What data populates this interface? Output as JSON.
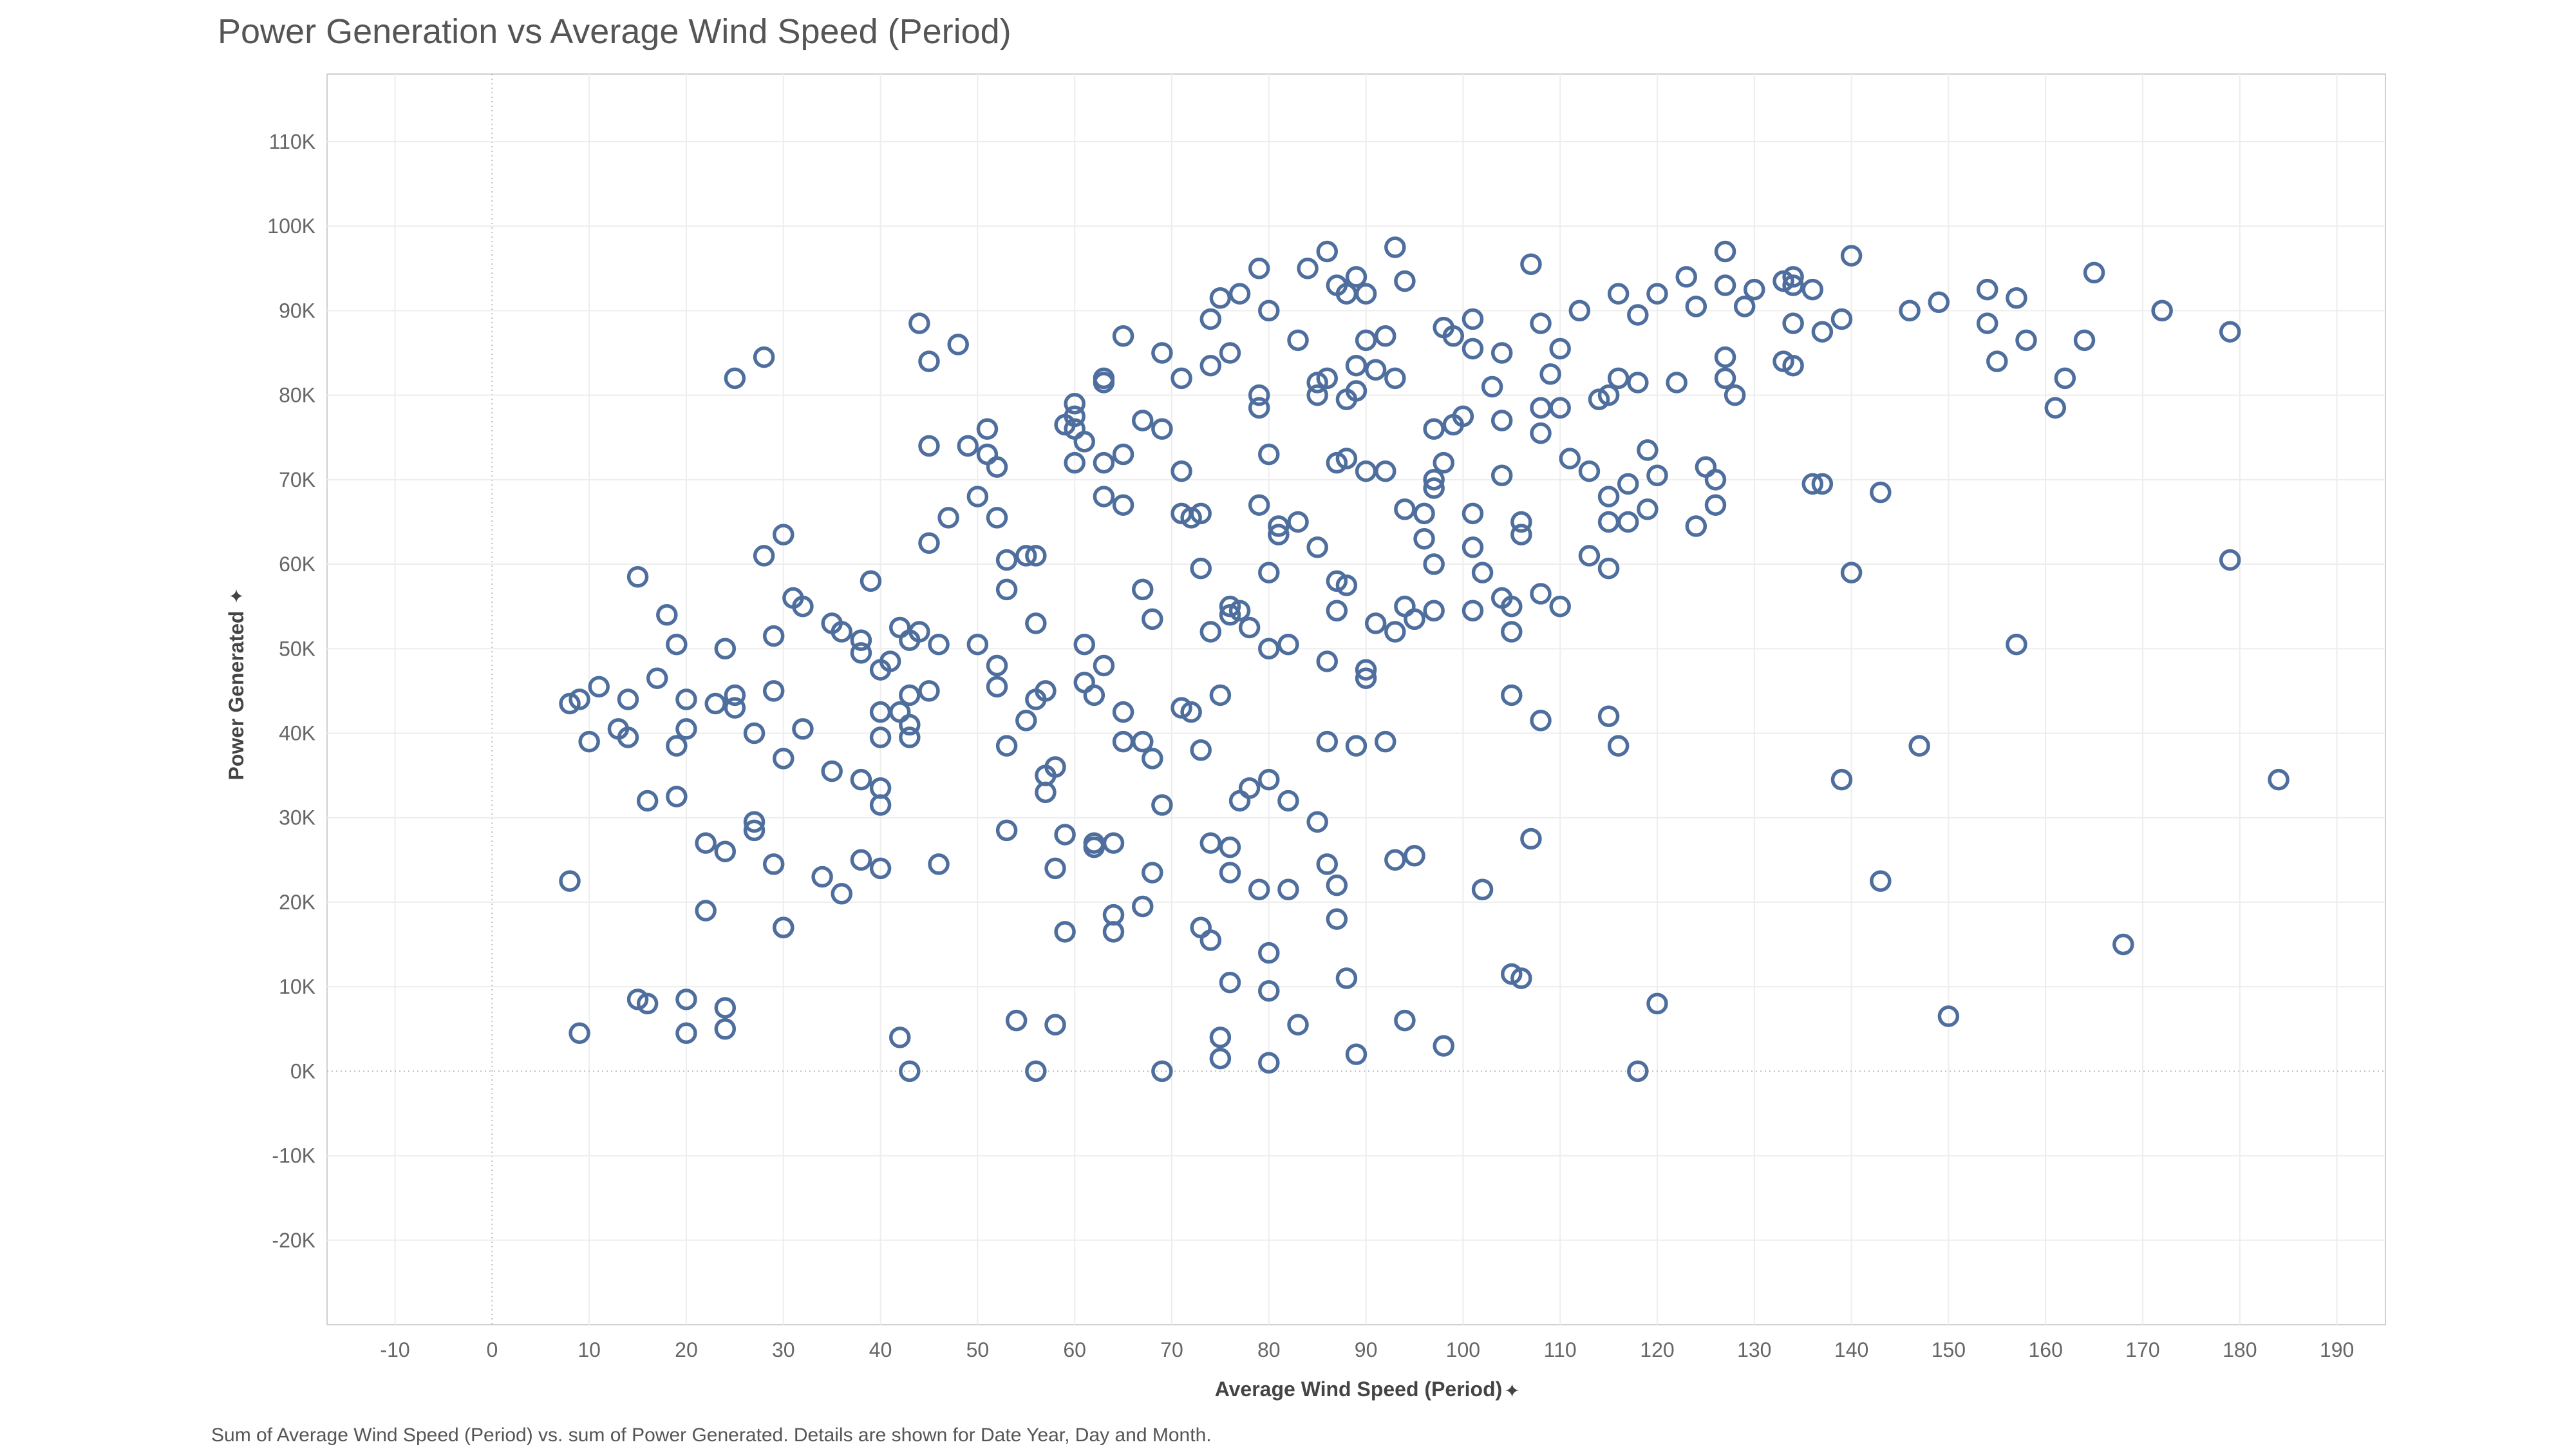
{
  "chart_data": {
    "type": "scatter",
    "title": "Power Generation vs Average Wind Speed (Period)",
    "xlabel": "Average Wind Speed (Period)",
    "ylabel": "Power Generated",
    "caption": "Sum of Average Wind Speed (Period) vs. sum of Power Generated.  Details are shown for Date Year, Day and Month.",
    "xlim": [
      -17,
      195
    ],
    "ylim": [
      -30000,
      118000
    ],
    "x_ticks": [
      -10,
      0,
      10,
      20,
      30,
      40,
      50,
      60,
      70,
      80,
      90,
      100,
      110,
      120,
      130,
      140,
      150,
      160,
      170,
      180,
      190
    ],
    "x_tick_labels": [
      "-10",
      "0",
      "10",
      "20",
      "30",
      "40",
      "50",
      "60",
      "70",
      "80",
      "90",
      "100",
      "110",
      "120",
      "130",
      "140",
      "150",
      "160",
      "170",
      "180",
      "190"
    ],
    "y_ticks": [
      -20000,
      -10000,
      0,
      10000,
      20000,
      30000,
      40000,
      50000,
      60000,
      70000,
      80000,
      90000,
      100000,
      110000
    ],
    "y_tick_labels": [
      "-20K",
      "-10K",
      "0K",
      "10K",
      "20K",
      "30K",
      "40K",
      "50K",
      "60K",
      "70K",
      "80K",
      "90K",
      "100K",
      "110K"
    ],
    "grid": true,
    "marker_color": "#4e6e9e",
    "points": [
      [
        8,
        43500
      ],
      [
        9,
        44000
      ],
      [
        10,
        39000
      ],
      [
        11,
        45500
      ],
      [
        14,
        44000
      ],
      [
        13,
        40500
      ],
      [
        14,
        39500
      ],
      [
        15,
        58500
      ],
      [
        16,
        32000
      ],
      [
        17,
        46500
      ],
      [
        18,
        54000
      ],
      [
        19,
        50500
      ],
      [
        19,
        38500
      ],
      [
        19,
        32500
      ],
      [
        20,
        44000
      ],
      [
        20,
        40500
      ],
      [
        22,
        27000
      ],
      [
        22,
        19000
      ],
      [
        23,
        43500
      ],
      [
        24,
        50000
      ],
      [
        24,
        26000
      ],
      [
        25,
        44500
      ],
      [
        25,
        43000
      ],
      [
        25,
        82000
      ],
      [
        27,
        40000
      ],
      [
        27,
        29500
      ],
      [
        27,
        28500
      ],
      [
        28,
        61000
      ],
      [
        28,
        84500
      ],
      [
        29,
        51500
      ],
      [
        29,
        45000
      ],
      [
        29,
        24500
      ],
      [
        30,
        37000
      ],
      [
        30,
        63500
      ],
      [
        30,
        17000
      ],
      [
        31,
        56000
      ],
      [
        32,
        55000
      ],
      [
        32,
        40500
      ],
      [
        34,
        23000
      ],
      [
        35,
        53000
      ],
      [
        35,
        35500
      ],
      [
        36,
        52000
      ],
      [
        36,
        21000
      ],
      [
        38,
        51000
      ],
      [
        38,
        49500
      ],
      [
        38,
        34500
      ],
      [
        38,
        25000
      ],
      [
        39,
        58000
      ],
      [
        40,
        47500
      ],
      [
        40,
        42500
      ],
      [
        40,
        39500
      ],
      [
        40,
        33500
      ],
      [
        40,
        31500
      ],
      [
        40,
        24000
      ],
      [
        41,
        48500
      ],
      [
        42,
        52500
      ],
      [
        42,
        42500
      ],
      [
        43,
        51000
      ],
      [
        43,
        44500
      ],
      [
        43,
        41000
      ],
      [
        43,
        39500
      ],
      [
        44,
        52000
      ],
      [
        44,
        88500
      ],
      [
        45,
        84000
      ],
      [
        45,
        74000
      ],
      [
        45,
        62500
      ],
      [
        45,
        45000
      ],
      [
        46,
        50500
      ],
      [
        46,
        24500
      ],
      [
        8,
        22500
      ],
      [
        9,
        4500
      ],
      [
        15,
        8500
      ],
      [
        16,
        8000
      ],
      [
        20,
        8500
      ],
      [
        20,
        4500
      ],
      [
        24,
        7500
      ],
      [
        24,
        5000
      ],
      [
        30,
        17000
      ],
      [
        42,
        4000
      ],
      [
        43,
        0
      ],
      [
        47,
        65500
      ],
      [
        48,
        86000
      ],
      [
        49,
        74000
      ],
      [
        50,
        68000
      ],
      [
        50,
        50500
      ],
      [
        51,
        76000
      ],
      [
        51,
        73000
      ],
      [
        52,
        71500
      ],
      [
        52,
        65500
      ],
      [
        52,
        48000
      ],
      [
        52,
        45500
      ],
      [
        53,
        60500
      ],
      [
        53,
        57000
      ],
      [
        53,
        38500
      ],
      [
        53,
        28500
      ],
      [
        54,
        6000
      ],
      [
        55,
        61000
      ],
      [
        55,
        41500
      ],
      [
        56,
        61000
      ],
      [
        56,
        53000
      ],
      [
        56,
        44000
      ],
      [
        56,
        0
      ],
      [
        57,
        45000
      ],
      [
        57,
        35000
      ],
      [
        57,
        33000
      ],
      [
        58,
        36000
      ],
      [
        58,
        24000
      ],
      [
        58,
        5500
      ],
      [
        59,
        76500
      ],
      [
        59,
        28000
      ],
      [
        59,
        16500
      ],
      [
        60,
        79000
      ],
      [
        60,
        77500
      ],
      [
        60,
        76000
      ],
      [
        60,
        72000
      ],
      [
        61,
        74500
      ],
      [
        61,
        50500
      ],
      [
        61,
        46000
      ],
      [
        62,
        44500
      ],
      [
        62,
        27000
      ],
      [
        62,
        26500
      ],
      [
        63,
        82000
      ],
      [
        63,
        81500
      ],
      [
        63,
        72000
      ],
      [
        63,
        68000
      ],
      [
        63,
        48000
      ],
      [
        64,
        27000
      ],
      [
        64,
        18500
      ],
      [
        64,
        16500
      ],
      [
        65,
        87000
      ],
      [
        65,
        73000
      ],
      [
        65,
        67000
      ],
      [
        65,
        42500
      ],
      [
        65,
        39000
      ],
      [
        67,
        77000
      ],
      [
        67,
        57000
      ],
      [
        67,
        39000
      ],
      [
        67,
        19500
      ],
      [
        68,
        53500
      ],
      [
        68,
        37000
      ],
      [
        68,
        23500
      ],
      [
        69,
        85000
      ],
      [
        69,
        76000
      ],
      [
        69,
        31500
      ],
      [
        69,
        0
      ],
      [
        71,
        82000
      ],
      [
        71,
        71000
      ],
      [
        71,
        66000
      ],
      [
        71,
        43000
      ],
      [
        72,
        65500
      ],
      [
        72,
        42500
      ],
      [
        73,
        66000
      ],
      [
        73,
        59500
      ],
      [
        73,
        38000
      ],
      [
        73,
        17000
      ],
      [
        74,
        89000
      ],
      [
        74,
        83500
      ],
      [
        74,
        52000
      ],
      [
        74,
        27000
      ],
      [
        74,
        15500
      ],
      [
        75,
        91500
      ],
      [
        75,
        44500
      ],
      [
        75,
        4000
      ],
      [
        75,
        1500
      ],
      [
        76,
        85000
      ],
      [
        76,
        55000
      ],
      [
        76,
        54000
      ],
      [
        76,
        26500
      ],
      [
        76,
        23500
      ],
      [
        76,
        10500
      ],
      [
        77,
        92000
      ],
      [
        77,
        54500
      ],
      [
        77,
        32000
      ],
      [
        78,
        52500
      ],
      [
        78,
        33500
      ],
      [
        79,
        95000
      ],
      [
        79,
        80000
      ],
      [
        79,
        78500
      ],
      [
        79,
        67000
      ],
      [
        79,
        21500
      ],
      [
        80,
        90000
      ],
      [
        80,
        73000
      ],
      [
        80,
        59000
      ],
      [
        80,
        50000
      ],
      [
        80,
        34500
      ],
      [
        80,
        14000
      ],
      [
        80,
        9500
      ],
      [
        80,
        1000
      ],
      [
        81,
        64500
      ],
      [
        81,
        63500
      ],
      [
        82,
        50500
      ],
      [
        82,
        32000
      ],
      [
        82,
        21500
      ],
      [
        83,
        86500
      ],
      [
        83,
        65000
      ],
      [
        83,
        5500
      ],
      [
        84,
        95000
      ],
      [
        85,
        81500
      ],
      [
        85,
        80000
      ],
      [
        85,
        62000
      ],
      [
        85,
        29500
      ],
      [
        86,
        97000
      ],
      [
        86,
        82000
      ],
      [
        86,
        48500
      ],
      [
        86,
        39000
      ],
      [
        86,
        24500
      ],
      [
        87,
        93000
      ],
      [
        87,
        72000
      ],
      [
        87,
        58000
      ],
      [
        87,
        54500
      ],
      [
        87,
        22000
      ],
      [
        87,
        18000
      ],
      [
        88,
        92000
      ],
      [
        88,
        79500
      ],
      [
        88,
        72500
      ],
      [
        88,
        57500
      ],
      [
        88,
        11000
      ],
      [
        89,
        94000
      ],
      [
        89,
        83500
      ],
      [
        89,
        80500
      ],
      [
        89,
        38500
      ],
      [
        89,
        2000
      ],
      [
        90,
        92000
      ],
      [
        90,
        86500
      ],
      [
        90,
        71000
      ],
      [
        90,
        47500
      ],
      [
        90,
        46500
      ],
      [
        91,
        83000
      ],
      [
        91,
        53000
      ],
      [
        92,
        87000
      ],
      [
        92,
        71000
      ],
      [
        92,
        39000
      ],
      [
        93,
        97500
      ],
      [
        93,
        82000
      ],
      [
        93,
        52000
      ],
      [
        93,
        25000
      ],
      [
        94,
        93500
      ],
      [
        94,
        66500
      ],
      [
        94,
        55000
      ],
      [
        94,
        6000
      ],
      [
        95,
        53500
      ],
      [
        95,
        25500
      ],
      [
        96,
        66000
      ],
      [
        96,
        63000
      ],
      [
        97,
        76000
      ],
      [
        97,
        70000
      ],
      [
        97,
        69000
      ],
      [
        97,
        60000
      ],
      [
        97,
        54500
      ],
      [
        98,
        88000
      ],
      [
        98,
        72000
      ],
      [
        98,
        3000
      ],
      [
        99,
        87000
      ],
      [
        99,
        76500
      ],
      [
        100,
        77500
      ],
      [
        101,
        89000
      ],
      [
        101,
        85500
      ],
      [
        101,
        66000
      ],
      [
        101,
        62000
      ],
      [
        101,
        54500
      ],
      [
        102,
        59000
      ],
      [
        102,
        21500
      ],
      [
        103,
        81000
      ],
      [
        104,
        85000
      ],
      [
        104,
        77000
      ],
      [
        104,
        70500
      ],
      [
        104,
        56000
      ],
      [
        105,
        55000
      ],
      [
        105,
        52000
      ],
      [
        105,
        44500
      ],
      [
        105,
        11500
      ],
      [
        106,
        65000
      ],
      [
        106,
        63500
      ],
      [
        106,
        11000
      ],
      [
        107,
        95500
      ],
      [
        107,
        27500
      ],
      [
        108,
        88500
      ],
      [
        108,
        78500
      ],
      [
        108,
        75500
      ],
      [
        108,
        56500
      ],
      [
        108,
        41500
      ],
      [
        109,
        82500
      ],
      [
        110,
        85500
      ],
      [
        110,
        78500
      ],
      [
        110,
        55000
      ],
      [
        111,
        72500
      ],
      [
        112,
        90000
      ],
      [
        113,
        71000
      ],
      [
        113,
        61000
      ],
      [
        114,
        79500
      ],
      [
        115,
        80000
      ],
      [
        115,
        68000
      ],
      [
        115,
        65000
      ],
      [
        115,
        59500
      ],
      [
        115,
        42000
      ],
      [
        116,
        92000
      ],
      [
        116,
        82000
      ],
      [
        116,
        38500
      ],
      [
        117,
        69500
      ],
      [
        117,
        65000
      ],
      [
        118,
        89500
      ],
      [
        118,
        81500
      ],
      [
        119,
        73500
      ],
      [
        119,
        66500
      ],
      [
        120,
        92000
      ],
      [
        120,
        70500
      ],
      [
        120,
        8000
      ],
      [
        118,
        0
      ],
      [
        122,
        81500
      ],
      [
        123,
        94000
      ],
      [
        124,
        90500
      ],
      [
        124,
        64500
      ],
      [
        125,
        71500
      ],
      [
        126,
        70000
      ],
      [
        126,
        67000
      ],
      [
        127,
        97000
      ],
      [
        127,
        93000
      ],
      [
        127,
        84500
      ],
      [
        127,
        82000
      ],
      [
        128,
        80000
      ],
      [
        129,
        90500
      ],
      [
        130,
        92500
      ],
      [
        133,
        93500
      ],
      [
        133,
        84000
      ],
      [
        134,
        94000
      ],
      [
        134,
        93000
      ],
      [
        134,
        88500
      ],
      [
        134,
        83500
      ],
      [
        136,
        92500
      ],
      [
        136,
        69500
      ],
      [
        137,
        87500
      ],
      [
        137,
        69500
      ],
      [
        139,
        89000
      ],
      [
        139,
        34500
      ],
      [
        140,
        96500
      ],
      [
        140,
        59000
      ],
      [
        143,
        68500
      ],
      [
        143,
        22500
      ],
      [
        146,
        90000
      ],
      [
        147,
        38500
      ],
      [
        149,
        91000
      ],
      [
        150,
        6500
      ],
      [
        154,
        92500
      ],
      [
        154,
        88500
      ],
      [
        155,
        84000
      ],
      [
        157,
        91500
      ],
      [
        157,
        50500
      ],
      [
        158,
        86500
      ],
      [
        161,
        78500
      ],
      [
        162,
        82000
      ],
      [
        164,
        86500
      ],
      [
        165,
        94500
      ],
      [
        168,
        15000
      ],
      [
        172,
        90000
      ],
      [
        179,
        87500
      ],
      [
        179,
        60500
      ],
      [
        184,
        34500
      ]
    ]
  }
}
